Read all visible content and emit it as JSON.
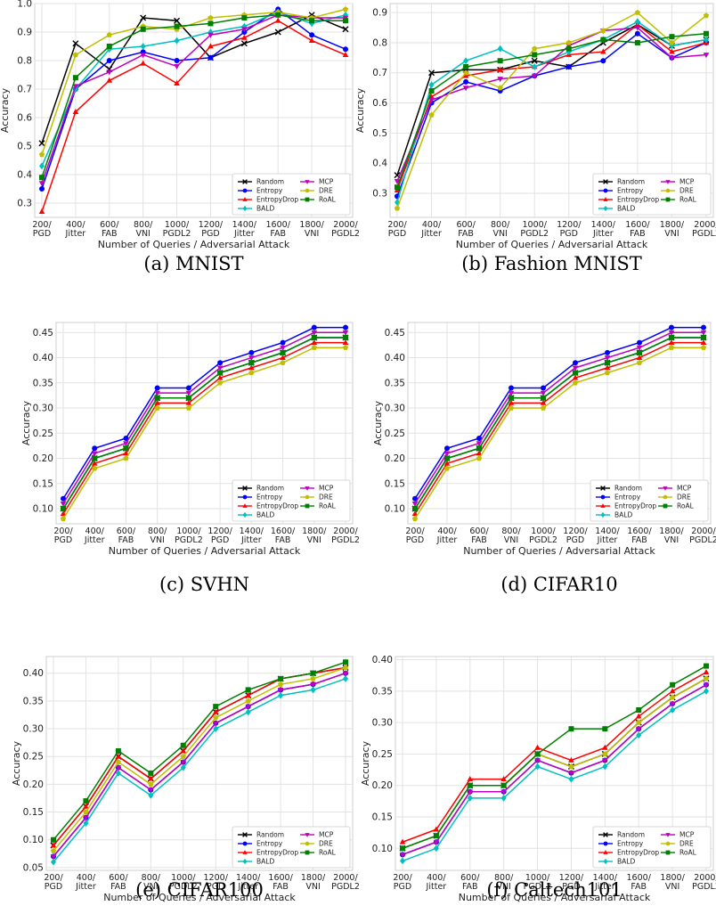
{
  "chart_data": [
    {
      "type": "line",
      "caption": "(a) MNIST",
      "ylabel": "Accuracy",
      "xlabel": "Number of Queries / Adversarial Attack",
      "categories": [
        "200/\nPGD",
        "400/\nJitter",
        "600/\nFAB",
        "800/\nVNI",
        "1000/\nPGDL2",
        "1200/\nPGD",
        "1400/\nJitter",
        "1600/\nFAB",
        "1800/\nVNI",
        "2000/\nPGDL2"
      ],
      "ylim": [
        0.25,
        1.0
      ],
      "yticks": [
        "0.3",
        "0.4",
        "0.5",
        "0.6",
        "0.7",
        "0.8",
        "0.9",
        "1.0"
      ],
      "grid": true,
      "legend_position": "lower-right",
      "series": [
        {
          "name": "Random",
          "values": [
            0.51,
            0.86,
            0.77,
            0.95,
            0.94,
            0.81,
            0.86,
            0.9,
            0.96,
            0.91
          ]
        },
        {
          "name": "Entropy",
          "values": [
            0.35,
            0.7,
            0.8,
            0.83,
            0.8,
            0.81,
            0.9,
            0.98,
            0.89,
            0.84
          ]
        },
        {
          "name": "EntropyDrop",
          "values": [
            0.27,
            0.62,
            0.73,
            0.79,
            0.72,
            0.85,
            0.88,
            0.94,
            0.87,
            0.82
          ]
        },
        {
          "name": "BALD",
          "values": [
            0.43,
            0.7,
            0.84,
            0.85,
            0.87,
            0.9,
            0.92,
            0.97,
            0.93,
            0.96
          ]
        },
        {
          "name": "MCP",
          "values": [
            0.37,
            0.71,
            0.76,
            0.82,
            0.78,
            0.89,
            0.91,
            0.96,
            0.95,
            0.95
          ]
        },
        {
          "name": "DRE",
          "values": [
            0.47,
            0.82,
            0.89,
            0.92,
            0.91,
            0.95,
            0.96,
            0.97,
            0.95,
            0.98
          ]
        },
        {
          "name": "RoAL",
          "values": [
            0.39,
            0.74,
            0.85,
            0.91,
            0.92,
            0.93,
            0.95,
            0.96,
            0.94,
            0.94
          ]
        }
      ]
    },
    {
      "type": "line",
      "caption": "(b) Fashion MNIST",
      "ylabel": "Accuracy",
      "xlabel": "Number of Queries / Adversarial Attack",
      "categories": [
        "200/\nPGD",
        "400/\nJitter",
        "600/\nFAB",
        "800/\nVNI",
        "1000/\nPGDL2",
        "1200/\nPGD",
        "1400/\nJitter",
        "1600/\nFAB",
        "1800/\nVNI",
        "2000/\nPGDL2"
      ],
      "ylim": [
        0.22,
        0.93
      ],
      "yticks": [
        "0.3",
        "0.4",
        "0.5",
        "0.6",
        "0.7",
        "0.8",
        "0.9"
      ],
      "grid": true,
      "legend_position": "lower-right",
      "series": [
        {
          "name": "Random",
          "values": [
            0.36,
            0.7,
            0.71,
            0.71,
            0.74,
            0.72,
            0.8,
            0.86,
            0.79,
            0.81
          ]
        },
        {
          "name": "Entropy",
          "values": [
            0.29,
            0.6,
            0.67,
            0.64,
            0.69,
            0.72,
            0.74,
            0.83,
            0.75,
            0.8
          ]
        },
        {
          "name": "EntropyDrop",
          "values": [
            0.31,
            0.62,
            0.69,
            0.71,
            0.72,
            0.76,
            0.77,
            0.86,
            0.77,
            0.8
          ]
        },
        {
          "name": "BALD",
          "values": [
            0.27,
            0.66,
            0.74,
            0.78,
            0.72,
            0.77,
            0.81,
            0.87,
            0.79,
            0.81
          ]
        },
        {
          "name": "MCP",
          "values": [
            0.34,
            0.61,
            0.65,
            0.68,
            0.69,
            0.79,
            0.84,
            0.85,
            0.75,
            0.76
          ]
        },
        {
          "name": "DRE",
          "values": [
            0.25,
            0.56,
            0.7,
            0.65,
            0.78,
            0.8,
            0.84,
            0.9,
            0.8,
            0.89
          ]
        },
        {
          "name": "RoAL",
          "values": [
            0.32,
            0.64,
            0.72,
            0.74,
            0.76,
            0.78,
            0.81,
            0.8,
            0.82,
            0.83
          ]
        }
      ]
    },
    {
      "type": "line",
      "caption": "(c) SVHN",
      "ylabel": "Accuracy",
      "xlabel": "Number of Queries / Adversarial Attack",
      "categories": [
        "200/\nPGD",
        "400/\nJitter",
        "600/\nFAB",
        "800/\nVNI",
        "1000/\nPGDL2",
        "1200/\nPGD",
        "1400/\nJitter",
        "1600/\nFAB",
        "1800/\nVNI",
        "2000/\nPGDL2"
      ],
      "ylim": [
        0.07,
        0.47
      ],
      "yticks": [
        "0.10",
        "0.15",
        "0.20",
        "0.25",
        "0.30",
        "0.35",
        "0.40",
        "0.45"
      ],
      "grid": true,
      "legend_position": "lower-right",
      "series": [
        {
          "name": "Random",
          "values": [
            0.1,
            0.2,
            0.22,
            0.32,
            0.32,
            0.37,
            0.39,
            0.41,
            0.44,
            0.44
          ]
        },
        {
          "name": "Entropy",
          "values": [
            0.12,
            0.22,
            0.24,
            0.34,
            0.34,
            0.39,
            0.41,
            0.43,
            0.46,
            0.46
          ]
        },
        {
          "name": "EntropyDrop",
          "values": [
            0.09,
            0.19,
            0.21,
            0.31,
            0.31,
            0.36,
            0.38,
            0.4,
            0.43,
            0.43
          ]
        },
        {
          "name": "BALD",
          "values": [
            0.1,
            0.2,
            0.22,
            0.32,
            0.32,
            0.37,
            0.39,
            0.41,
            0.44,
            0.44
          ]
        },
        {
          "name": "MCP",
          "values": [
            0.11,
            0.21,
            0.23,
            0.33,
            0.33,
            0.38,
            0.4,
            0.42,
            0.45,
            0.45
          ]
        },
        {
          "name": "DRE",
          "values": [
            0.08,
            0.18,
            0.2,
            0.3,
            0.3,
            0.35,
            0.37,
            0.39,
            0.42,
            0.42
          ]
        },
        {
          "name": "RoAL",
          "values": [
            0.1,
            0.2,
            0.22,
            0.32,
            0.32,
            0.37,
            0.39,
            0.41,
            0.44,
            0.44
          ]
        }
      ]
    },
    {
      "type": "line",
      "caption": "(d) CIFAR10",
      "ylabel": "Accuracy",
      "xlabel": "Number of Queries / Adversarial Attack",
      "categories": [
        "200/\nPGD",
        "400/\nJitter",
        "600/\nFAB",
        "800/\nVNI",
        "1000/\nPGDL2",
        "1200/\nPGD",
        "1400/\nJitter",
        "1600/\nFAB",
        "1800/\nVNI",
        "2000/\nPGDL2"
      ],
      "ylim": [
        0.07,
        0.47
      ],
      "yticks": [
        "0.10",
        "0.15",
        "0.20",
        "0.25",
        "0.30",
        "0.35",
        "0.40",
        "0.45"
      ],
      "grid": true,
      "legend_position": "lower-right",
      "series": [
        {
          "name": "Random",
          "values": [
            0.1,
            0.2,
            0.22,
            0.32,
            0.32,
            0.37,
            0.39,
            0.41,
            0.44,
            0.44
          ]
        },
        {
          "name": "Entropy",
          "values": [
            0.12,
            0.22,
            0.24,
            0.34,
            0.34,
            0.39,
            0.41,
            0.43,
            0.46,
            0.46
          ]
        },
        {
          "name": "EntropyDrop",
          "values": [
            0.09,
            0.19,
            0.21,
            0.31,
            0.31,
            0.36,
            0.38,
            0.4,
            0.43,
            0.43
          ]
        },
        {
          "name": "BALD",
          "values": [
            0.1,
            0.2,
            0.22,
            0.32,
            0.32,
            0.37,
            0.39,
            0.41,
            0.44,
            0.44
          ]
        },
        {
          "name": "MCP",
          "values": [
            0.11,
            0.21,
            0.23,
            0.33,
            0.33,
            0.38,
            0.4,
            0.42,
            0.45,
            0.45
          ]
        },
        {
          "name": "DRE",
          "values": [
            0.08,
            0.18,
            0.2,
            0.3,
            0.3,
            0.35,
            0.37,
            0.39,
            0.42,
            0.42
          ]
        },
        {
          "name": "RoAL",
          "values": [
            0.1,
            0.2,
            0.22,
            0.32,
            0.32,
            0.37,
            0.39,
            0.41,
            0.44,
            0.44
          ]
        }
      ]
    },
    {
      "type": "line",
      "caption": "(e) CIFAR100",
      "ylabel": "Accuracy",
      "xlabel": "Number of Queries / Adversarial Attack",
      "categories": [
        "200/\nPGD",
        "400/\nJitter",
        "600/\nFAB",
        "800/\nVNI",
        "1000/\nPGDL2",
        "1200/\nPGD",
        "1400/\nJitter",
        "1600/\nFAB",
        "1800/\nVNI",
        "2000/\nPGDL2"
      ],
      "ylim": [
        0.045,
        0.43
      ],
      "yticks": [
        "0.05",
        "0.10",
        "0.15",
        "0.20",
        "0.25",
        "0.30",
        "0.35",
        "0.40"
      ],
      "grid": true,
      "legend_position": "lower-right",
      "series": [
        {
          "name": "Random",
          "values": [
            0.09,
            0.16,
            0.25,
            0.21,
            0.26,
            0.33,
            0.36,
            0.39,
            0.4,
            0.41
          ]
        },
        {
          "name": "Entropy",
          "values": [
            0.07,
            0.14,
            0.23,
            0.19,
            0.24,
            0.31,
            0.34,
            0.37,
            0.38,
            0.4
          ]
        },
        {
          "name": "EntropyDrop",
          "values": [
            0.09,
            0.16,
            0.25,
            0.21,
            0.26,
            0.33,
            0.36,
            0.39,
            0.4,
            0.41
          ]
        },
        {
          "name": "BALD",
          "values": [
            0.06,
            0.13,
            0.22,
            0.18,
            0.23,
            0.3,
            0.33,
            0.36,
            0.37,
            0.39
          ]
        },
        {
          "name": "MCP",
          "values": [
            0.07,
            0.14,
            0.23,
            0.19,
            0.24,
            0.31,
            0.34,
            0.37,
            0.38,
            0.4
          ]
        },
        {
          "name": "DRE",
          "values": [
            0.08,
            0.15,
            0.24,
            0.2,
            0.25,
            0.32,
            0.35,
            0.38,
            0.39,
            0.41
          ]
        },
        {
          "name": "RoAL",
          "values": [
            0.1,
            0.17,
            0.26,
            0.22,
            0.27,
            0.34,
            0.37,
            0.39,
            0.4,
            0.42
          ]
        }
      ]
    },
    {
      "type": "line",
      "caption": "(f) Caltech101",
      "ylabel": "Accuracy",
      "xlabel": "Number of Queries / Adversarial Attack",
      "categories": [
        "200/\nPGD",
        "400/\nJitter",
        "600/\nFAB",
        "800/\nVNI",
        "1000/\nPGDL2",
        "1200/\nPGD",
        "1400/\nJitter",
        "1600/\nFAB",
        "1800/\nVNI",
        "2000/\nPGDL2"
      ],
      "ylim": [
        0.065,
        0.405
      ],
      "yticks": [
        "0.10",
        "0.15",
        "0.20",
        "0.25",
        "0.30",
        "0.35",
        "0.40"
      ],
      "grid": true,
      "legend_position": "lower-right",
      "series": [
        {
          "name": "Random",
          "values": [
            0.1,
            0.12,
            0.2,
            0.2,
            0.25,
            0.23,
            0.25,
            0.3,
            0.34,
            0.37
          ]
        },
        {
          "name": "Entropy",
          "values": [
            0.09,
            0.11,
            0.19,
            0.19,
            0.24,
            0.22,
            0.24,
            0.29,
            0.33,
            0.36
          ]
        },
        {
          "name": "EntropyDrop",
          "values": [
            0.11,
            0.13,
            0.21,
            0.21,
            0.26,
            0.24,
            0.26,
            0.31,
            0.35,
            0.38
          ]
        },
        {
          "name": "BALD",
          "values": [
            0.08,
            0.1,
            0.18,
            0.18,
            0.23,
            0.21,
            0.23,
            0.28,
            0.32,
            0.35
          ]
        },
        {
          "name": "MCP",
          "values": [
            0.09,
            0.11,
            0.19,
            0.19,
            0.24,
            0.22,
            0.24,
            0.29,
            0.33,
            0.36
          ]
        },
        {
          "name": "DRE",
          "values": [
            0.1,
            0.12,
            0.2,
            0.2,
            0.25,
            0.23,
            0.25,
            0.3,
            0.34,
            0.37
          ]
        },
        {
          "name": "RoAL",
          "values": [
            0.1,
            0.12,
            0.2,
            0.2,
            0.25,
            0.29,
            0.29,
            0.32,
            0.36,
            0.39
          ]
        }
      ]
    }
  ],
  "series_styles": [
    {
      "name": "Random",
      "color": "#000000",
      "marker": "x"
    },
    {
      "name": "Entropy",
      "color": "#0000ff",
      "marker": "circle"
    },
    {
      "name": "EntropyDrop",
      "color": "#ff0000",
      "marker": "triangle-up"
    },
    {
      "name": "BALD",
      "color": "#00bfbf",
      "marker": "diamond"
    },
    {
      "name": "MCP",
      "color": "#bf00bf",
      "marker": "triangle-down"
    },
    {
      "name": "DRE",
      "color": "#bfbf00",
      "marker": "pentagon"
    },
    {
      "name": "RoAL",
      "color": "#008000",
      "marker": "square"
    }
  ]
}
